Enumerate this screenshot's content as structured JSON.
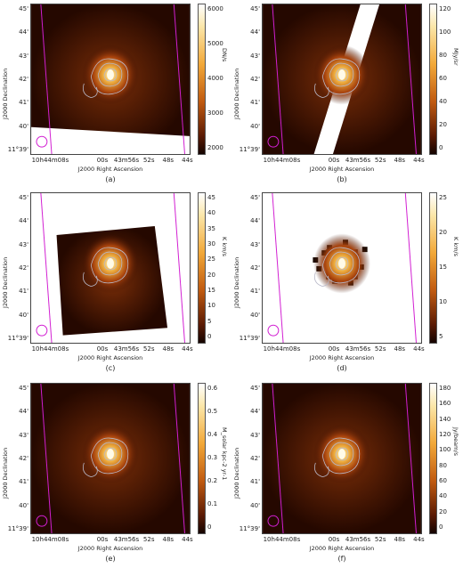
{
  "figure": {
    "y_axis_label": "J2000 Declination",
    "x_axis_label": "J2000 Right Ascension",
    "dec_ticks": [
      "45'",
      "44'",
      "43'",
      "42'",
      "41'",
      "40'",
      "11°39'"
    ],
    "ra_ticks": [
      "10h44m08s",
      "00s",
      "43m56s",
      "52s",
      "48s",
      "44s"
    ],
    "panels": [
      {
        "caption": "(a)",
        "cbar_label": "DN/s",
        "cbar_ticks": [
          "6000",
          "5000",
          "4000",
          "3000",
          "2000"
        ],
        "cbar": "hot",
        "bg": "dark"
      },
      {
        "caption": "(b)",
        "cbar_label": "MJy/sr",
        "cbar_ticks": [
          "120",
          "100",
          "80",
          "60",
          "40",
          "20",
          "0"
        ],
        "cbar": "hot",
        "bg": "dark"
      },
      {
        "caption": "(c)",
        "cbar_label": "K km/s",
        "cbar_ticks": [
          "45",
          "40",
          "35",
          "30",
          "25",
          "20",
          "15",
          "10",
          "5",
          "0"
        ],
        "cbar": "hot",
        "bg": "white"
      },
      {
        "caption": "(d)",
        "cbar_label": "K km/s",
        "cbar_ticks": [
          "25",
          "20",
          "15",
          "10",
          "5"
        ],
        "cbar": "hot",
        "bg": "white"
      },
      {
        "caption": "(e)",
        "cbar_label": "M_solar kpc-2 yr-1",
        "cbar_ticks": [
          "0.6",
          "0.5",
          "0.4",
          "0.3",
          "0.2",
          "0.1",
          "0"
        ],
        "cbar": "hot",
        "bg": "dark"
      },
      {
        "caption": "(f)",
        "cbar_label": "Jy/beam/s",
        "cbar_ticks": [
          "180",
          "160",
          "140",
          "120",
          "100",
          "80",
          "60",
          "40",
          "20",
          "0"
        ],
        "cbar": "hot",
        "bg": "dark"
      }
    ],
    "colors": {
      "magenta": "#d21fd2",
      "contour": "#b8b8c8"
    }
  }
}
